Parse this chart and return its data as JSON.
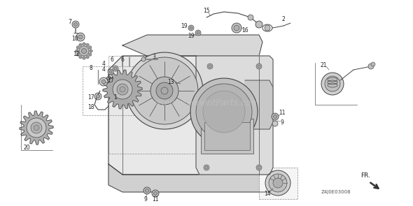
{
  "background_color": "#ffffff",
  "watermark_text": "eReplacementParts.com",
  "watermark_color": "#cccccc",
  "watermark_fontsize": 9,
  "diagram_code": "Z4J0E03008",
  "arrow_label": "FR.",
  "lc": "#444444",
  "fc_light": "#e8e8e8",
  "fc_mid": "#cccccc",
  "fc_dark": "#aaaaaa",
  "fc_white": "#f5f5f5"
}
